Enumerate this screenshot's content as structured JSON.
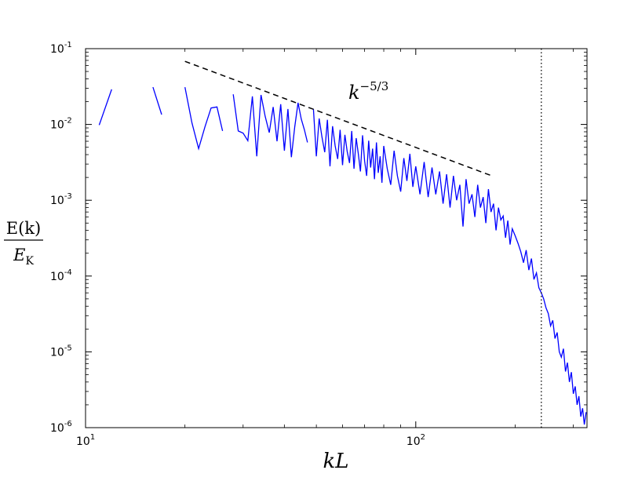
{
  "chart_data": {
    "type": "line",
    "xscale": "log",
    "yscale": "log",
    "xlim": [
      10,
      330
    ],
    "ylim": [
      1e-06,
      0.1
    ],
    "xlabel": "kL",
    "ylabel": "E(k)/E_K",
    "ylabel_num": "E(k)",
    "ylabel_den": "E",
    "ylabel_den_sub": "K",
    "grid": false,
    "x_ticks": [
      {
        "value": 10,
        "base": "10",
        "exp": "1"
      },
      {
        "value": 100,
        "base": "10",
        "exp": "2"
      }
    ],
    "y_ticks": [
      {
        "value": 0.1,
        "base": "10",
        "exp": "-1"
      },
      {
        "value": 0.01,
        "base": "10",
        "exp": "-2"
      },
      {
        "value": 0.001,
        "base": "10",
        "exp": "-3"
      },
      {
        "value": 0.0001,
        "base": "10",
        "exp": "-4"
      },
      {
        "value": 1e-05,
        "base": "10",
        "exp": "-5"
      },
      {
        "value": 1e-06,
        "base": "10",
        "exp": "-6"
      }
    ],
    "reference_line": {
      "label_base": "k",
      "label_exp": "−5/3",
      "x": [
        20,
        170
      ],
      "y": [
        0.068,
        0.0021
      ],
      "style": "dashed",
      "color": "#000000"
    },
    "vertical_marker": {
      "x": 240,
      "style": "dotted",
      "color": "#000000"
    },
    "series": [
      {
        "color": "#0000ff",
        "segments": [
          {
            "x": [
              11,
              12
            ],
            "y": [
              0.0098,
              0.029
            ]
          },
          {
            "x": [
              16,
              17
            ],
            "y": [
              0.031,
              0.0135
            ]
          },
          {
            "x": [
              20,
              21,
              22,
              23,
              24,
              25,
              26
            ],
            "y": [
              0.031,
              0.0105,
              0.0048,
              0.0093,
              0.0165,
              0.017,
              0.0082
            ]
          },
          {
            "x": [
              28,
              29,
              30,
              31,
              32,
              33,
              34,
              35,
              36,
              37,
              38,
              39,
              40,
              41,
              42,
              43,
              44,
              45,
              46,
              47
            ],
            "y": [
              0.025,
              0.0082,
              0.0077,
              0.0061,
              0.0235,
              0.0038,
              0.0245,
              0.0128,
              0.0078,
              0.017,
              0.006,
              0.0185,
              0.0045,
              0.016,
              0.0037,
              0.0093,
              0.0193,
              0.0118,
              0.0085,
              0.0058
            ]
          },
          {
            "x": [
              49,
              50,
              51,
              52,
              53,
              54,
              55,
              56,
              57,
              58,
              59,
              60,
              61,
              62,
              63,
              64,
              65,
              66,
              67,
              68,
              69,
              70,
              71,
              72,
              73,
              74,
              75,
              76,
              77,
              78,
              79,
              80,
              82,
              84,
              86,
              88,
              90,
              92,
              94,
              96,
              98,
              100,
              103,
              106,
              109,
              112,
              115,
              118,
              121,
              124,
              127,
              130,
              133,
              136,
              139,
              142,
              145,
              148,
              151,
              154,
              157,
              160,
              163,
              166,
              169,
              172,
              175,
              178,
              181,
              184,
              187,
              190,
              193,
              196,
              200,
              204,
              208,
              212,
              216,
              220,
              224,
              228,
              232,
              236,
              240,
              244,
              248,
              252,
              256,
              260,
              264,
              268,
              272,
              276,
              280,
              284,
              288,
              292,
              296,
              300,
              304,
              308,
              312,
              316,
              320,
              324,
              328
            ],
            "y": [
              0.016,
              0.0038,
              0.012,
              0.0068,
              0.0043,
              0.0115,
              0.0028,
              0.0095,
              0.0052,
              0.0035,
              0.0085,
              0.0029,
              0.0073,
              0.0044,
              0.0031,
              0.0082,
              0.0026,
              0.0066,
              0.0041,
              0.0024,
              0.0072,
              0.0033,
              0.0021,
              0.0061,
              0.0027,
              0.0048,
              0.0019,
              0.0058,
              0.0023,
              0.0038,
              0.0017,
              0.0052,
              0.0026,
              0.0016,
              0.0045,
              0.0021,
              0.0013,
              0.0036,
              0.0018,
              0.0041,
              0.0015,
              0.0028,
              0.0012,
              0.0032,
              0.0011,
              0.0027,
              0.0012,
              0.0024,
              0.0009,
              0.0022,
              0.0008,
              0.0021,
              0.001,
              0.0016,
              0.00045,
              0.0019,
              0.0009,
              0.0012,
              0.0006,
              0.0016,
              0.0008,
              0.0011,
              0.0005,
              0.0014,
              0.0007,
              0.0009,
              0.0004,
              0.0008,
              0.00055,
              0.00062,
              0.00032,
              0.00054,
              0.00026,
              0.00042,
              0.00034,
              0.00027,
              0.00021,
              0.00015,
              0.00022,
              0.00012,
              0.00017,
              9e-05,
              0.00011,
              7e-05,
              6e-05,
              5e-05,
              3.8e-05,
              3.2e-05,
              2.2e-05,
              2.6e-05,
              1.5e-05,
              1.8e-05,
              1e-05,
              8.5e-06,
              1.1e-05,
              5.5e-06,
              7.2e-06,
              4e-06,
              5.4e-06,
              2.8e-06,
              3.5e-06,
              2e-06,
              2.6e-06,
              1.4e-06,
              1.8e-06,
              1.1e-06,
              1.6e-06
            ]
          }
        ]
      }
    ]
  }
}
